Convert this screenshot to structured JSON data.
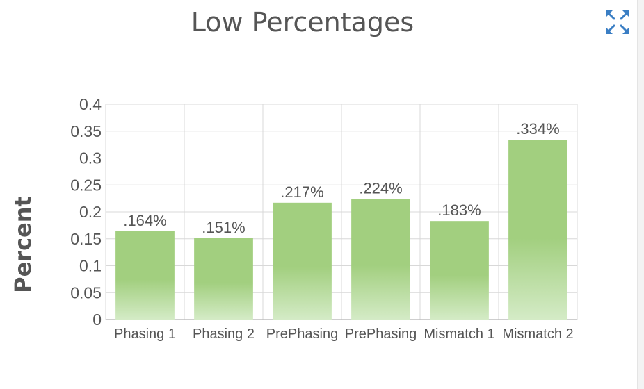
{
  "chart_data": {
    "type": "bar",
    "title": "Low Percentages",
    "xlabel": "",
    "ylabel": "Percent",
    "categories": [
      "Phasing 1",
      "Phasing 2",
      "PrePhasing",
      "PrePhasing",
      "Mismatch 1",
      "Mismatch 2"
    ],
    "values": [
      0.164,
      0.151,
      0.217,
      0.224,
      0.183,
      0.334
    ],
    "data_labels": [
      ".164%",
      ".151%",
      ".217%",
      ".224%",
      ".183%",
      ".334%"
    ],
    "ylim": [
      0,
      0.4
    ],
    "yticks": [
      "0",
      "0.05",
      "0.1",
      "0.15",
      "0.2",
      "0.25",
      "0.3",
      "0.35",
      "0.4"
    ],
    "grid": true,
    "legend": "none",
    "bar_color_top": "#a2cf7f",
    "bar_color_bottom": "#d4ebc6"
  },
  "toolbar": {
    "expand_icon": "expand-arrows-icon",
    "icon_color": "#3a7ec4"
  }
}
